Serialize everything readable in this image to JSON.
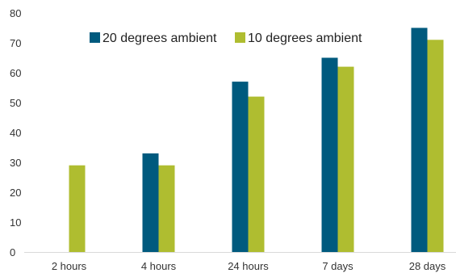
{
  "chart_data": {
    "type": "bar",
    "categories": [
      "2 hours",
      "4 hours",
      "24 hours",
      "7 days",
      "28 days"
    ],
    "series": [
      {
        "name": "20 degrees ambient",
        "values": [
          null,
          33,
          57,
          65,
          75
        ],
        "color": "#005a7e"
      },
      {
        "name": "10 degrees ambient",
        "values": [
          29,
          29,
          52,
          62,
          71
        ],
        "color": "#afbd30"
      }
    ],
    "ylim": [
      0,
      80
    ],
    "yticks": [
      0,
      10,
      20,
      30,
      40,
      50,
      60,
      70,
      80
    ],
    "grid": false,
    "legend_position": "top"
  }
}
